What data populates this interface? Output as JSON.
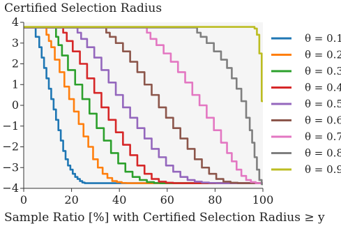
{
  "chart_data": {
    "type": "line",
    "ylabel": "Certified Selection Radius",
    "xlabel": "Sample Ratio [%] with Certified Selection Radius ≥ y",
    "xlim": [
      0,
      100
    ],
    "ylim": [
      -4,
      4
    ],
    "xticks": [
      "0",
      "20",
      "40",
      "60",
      "80",
      "100"
    ],
    "yticks": [
      "−4",
      "−3",
      "−2",
      "−1",
      "0",
      "1",
      "2",
      "3",
      "4"
    ],
    "grid": false,
    "background": "#f5f5f5",
    "legend_position": "right",
    "series": [
      {
        "name": "θ = 0.1",
        "color": "#1f77b4",
        "x": [
          0,
          4,
          6,
          7,
          8,
          9,
          10,
          11,
          12,
          13,
          14,
          15,
          16,
          17,
          18,
          19,
          20,
          21,
          22,
          23,
          24,
          25,
          26,
          100
        ],
        "y": [
          3.75,
          3.75,
          3.3,
          2.8,
          2.3,
          1.8,
          1.3,
          0.8,
          0.3,
          -0.2,
          -0.7,
          -1.2,
          -1.7,
          -2.2,
          -2.6,
          -2.9,
          -3.1,
          -3.3,
          -3.45,
          -3.55,
          -3.65,
          -3.72,
          -3.75,
          -3.75
        ]
      },
      {
        "name": "θ = 0.2",
        "color": "#ff7f0e",
        "x": [
          0,
          9,
          10,
          11,
          12,
          14,
          16,
          18,
          20,
          22,
          24,
          26,
          28,
          30,
          32,
          34,
          36,
          38,
          40,
          42,
          44,
          100
        ],
        "y": [
          3.75,
          3.75,
          3.4,
          3.1,
          2.8,
          2.2,
          1.6,
          0.9,
          0.3,
          -0.3,
          -0.9,
          -1.5,
          -2.0,
          -2.6,
          -3.0,
          -3.3,
          -3.5,
          -3.65,
          -3.7,
          -3.74,
          -3.75,
          -3.75
        ]
      },
      {
        "name": "θ = 0.3",
        "color": "#2ca02c",
        "x": [
          0,
          13,
          14,
          15,
          17,
          20,
          23,
          26,
          29,
          32,
          35,
          38,
          41,
          44,
          47,
          50,
          53,
          56,
          58,
          100
        ],
        "y": [
          3.75,
          3.75,
          3.3,
          2.9,
          2.4,
          1.7,
          1.0,
          0.3,
          -0.4,
          -1.1,
          -1.7,
          -2.3,
          -2.8,
          -3.2,
          -3.45,
          -3.6,
          -3.7,
          -3.74,
          -3.75,
          -3.75
        ]
      },
      {
        "name": "θ = 0.4",
        "color": "#d62728",
        "x": [
          0,
          16,
          17,
          19,
          22,
          25,
          28,
          31,
          34,
          37,
          40,
          43,
          46,
          49,
          52,
          55,
          58,
          61,
          64,
          67,
          100
        ],
        "y": [
          3.75,
          3.75,
          3.5,
          3.1,
          2.6,
          2.0,
          1.3,
          0.6,
          -0.1,
          -0.7,
          -1.3,
          -1.9,
          -2.4,
          -2.9,
          -3.3,
          -3.55,
          -3.68,
          -3.73,
          -3.75,
          -3.75,
          -3.75
        ]
      },
      {
        "name": "θ = 0.5",
        "color": "#9467bd",
        "x": [
          0,
          22,
          23,
          25,
          28,
          31,
          34,
          37,
          40,
          43,
          46,
          49,
          52,
          55,
          58,
          61,
          64,
          67,
          70,
          73,
          76,
          79,
          82,
          100
        ],
        "y": [
          3.75,
          3.75,
          3.5,
          3.2,
          2.8,
          2.3,
          1.7,
          1.1,
          0.5,
          -0.1,
          -0.6,
          -1.1,
          -1.6,
          -2.1,
          -2.5,
          -2.9,
          -3.2,
          -3.45,
          -3.6,
          -3.68,
          -3.72,
          -3.74,
          -3.75,
          -3.75
        ]
      },
      {
        "name": "θ = 0.6",
        "color": "#8c564b",
        "x": [
          0,
          34,
          35,
          37,
          40,
          43,
          46,
          49,
          52,
          55,
          58,
          61,
          64,
          67,
          70,
          73,
          76,
          79,
          82,
          85,
          88,
          91,
          100
        ],
        "y": [
          3.75,
          3.75,
          3.5,
          3.3,
          3.0,
          2.6,
          2.1,
          1.6,
          1.0,
          0.5,
          -0.1,
          -0.6,
          -1.1,
          -1.6,
          -2.1,
          -2.6,
          -3.0,
          -3.3,
          -3.55,
          -3.68,
          -3.73,
          -3.75,
          -3.75
        ]
      },
      {
        "name": "θ = 0.7",
        "color": "#e377c2",
        "x": [
          0,
          51,
          52,
          54,
          57,
          60,
          63,
          66,
          69,
          72,
          75,
          78,
          81,
          84,
          86,
          88,
          90,
          92,
          94,
          96,
          98,
          100
        ],
        "y": [
          3.75,
          3.75,
          3.5,
          3.2,
          2.9,
          2.5,
          2.1,
          1.6,
          1.1,
          0.5,
          0.0,
          -0.6,
          -1.2,
          -1.8,
          -2.3,
          -2.7,
          -3.1,
          -3.4,
          -3.6,
          -3.7,
          -3.75,
          -3.75
        ]
      },
      {
        "name": "θ = 0.8",
        "color": "#7f7f7f",
        "x": [
          0,
          72,
          73,
          75,
          78,
          81,
          84,
          86,
          88,
          90,
          92,
          94,
          95,
          96,
          97,
          98,
          99,
          100
        ],
        "y": [
          3.75,
          3.75,
          3.5,
          3.3,
          3.0,
          2.6,
          2.2,
          1.8,
          1.3,
          0.8,
          0.2,
          -0.6,
          -1.2,
          -1.8,
          -2.5,
          -3.1,
          -3.6,
          -3.8
        ]
      },
      {
        "name": "θ = 0.9",
        "color": "#bcbd22",
        "x": [
          0,
          96,
          97,
          98,
          99,
          100
        ],
        "y": [
          3.78,
          3.78,
          3.7,
          3.4,
          2.5,
          0.2
        ]
      }
    ]
  }
}
